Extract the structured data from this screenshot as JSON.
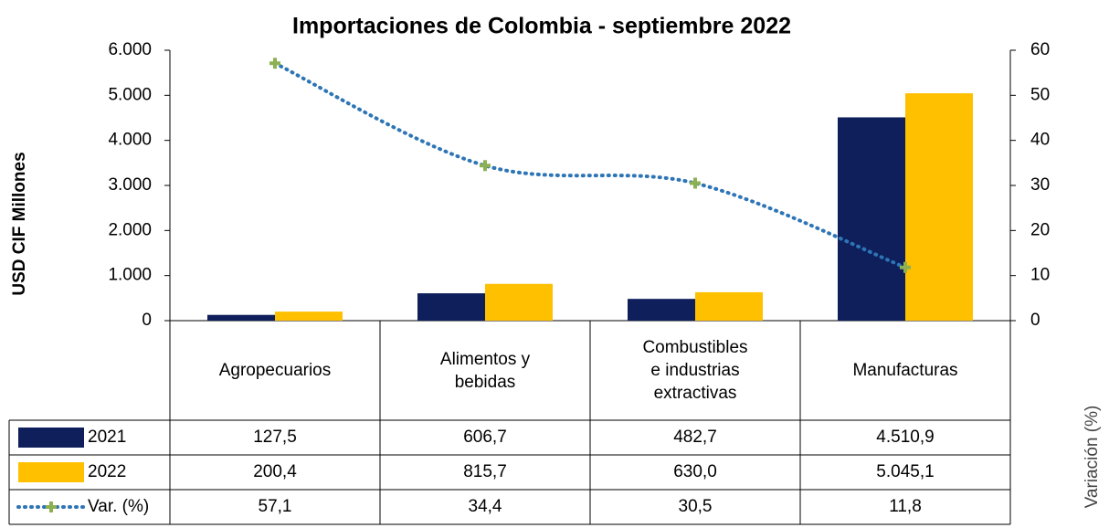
{
  "chart_data": {
    "type": "bar",
    "title": "Importaciones de Colombia - septiembre 2022",
    "ylabel": "USD CIF Millones",
    "y2label": "Variación (%)",
    "categories": [
      "Agropecuarios",
      "Alimentos y bebidas",
      "Combustibles e industrias extractivas",
      "Manufacturas"
    ],
    "series": [
      {
        "name": "2021",
        "color": "#0e1f5b",
        "values": [
          127.5,
          606.7,
          482.7,
          4510.9
        ],
        "value_labels": [
          "127,5",
          "606,7",
          "482,7",
          "4.510,9"
        ]
      },
      {
        "name": "2022",
        "color": "#ffc000",
        "values": [
          200.4,
          815.7,
          630.0,
          5045.1
        ],
        "value_labels": [
          "200,4",
          "815,7",
          "630,0",
          "5.045,1"
        ]
      },
      {
        "name": "Var. (%)",
        "type": "line",
        "axis": "y2",
        "color": "#2e75b6",
        "marker_color": "#8db152",
        "values": [
          57.1,
          34.4,
          30.5,
          11.8
        ],
        "value_labels": [
          "57,1",
          "34,4",
          "30,5",
          "11,8"
        ]
      }
    ],
    "ylim": [
      0,
      6000
    ],
    "yticks": [
      0,
      {
        "value": 1000,
        "label": "1.000"
      },
      {
        "value": 2000,
        "label": "2.000"
      },
      {
        "value": 3000,
        "label": "3.000"
      },
      {
        "value": 4000,
        "label": "4.000"
      },
      {
        "value": 5000,
        "label": "5.000"
      },
      {
        "value": 6000,
        "label": "6.000"
      }
    ],
    "y2lim": [
      0,
      60
    ],
    "y2ticks": [
      0,
      10,
      20,
      30,
      40,
      50,
      60
    ],
    "grid": false
  }
}
